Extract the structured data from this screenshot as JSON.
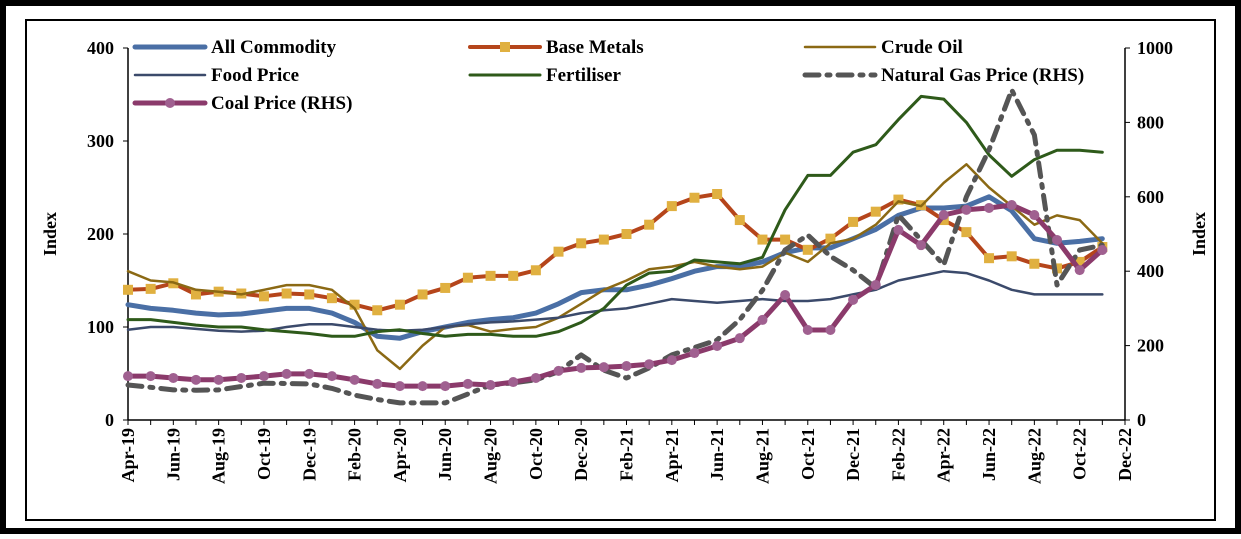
{
  "chart_data": {
    "type": "line",
    "categories": [
      "Apr-19",
      null,
      "Jun-19",
      null,
      "Aug-19",
      null,
      "Oct-19",
      null,
      "Dec-19",
      null,
      "Feb-20",
      null,
      "Apr-20",
      null,
      "Jun-20",
      null,
      "Aug-20",
      null,
      "Oct-20",
      null,
      "Dec-20",
      null,
      "Feb-21",
      null,
      "Apr-21",
      null,
      "Jun-21",
      null,
      "Aug-21",
      null,
      "Oct-21",
      null,
      "Dec-21",
      null,
      "Feb-22",
      null,
      "Apr-22",
      null,
      "Jun-22",
      null,
      "Aug-22",
      null,
      "Oct-22",
      null,
      "Dec-22"
    ],
    "ylabel": "Index",
    "y2label": "Index",
    "ylim": [
      0,
      400
    ],
    "yticks": [
      0,
      100,
      200,
      300,
      400
    ],
    "y2lim": [
      0,
      1000
    ],
    "y2ticks": [
      0,
      200,
      400,
      600,
      800,
      1000
    ],
    "series": [
      {
        "name": "All Commodity",
        "color": "#4a6fa5",
        "width": 5,
        "values": [
          124,
          120,
          118,
          115,
          113,
          114,
          117,
          120,
          120,
          115,
          105,
          90,
          88,
          95,
          100,
          105,
          108,
          110,
          115,
          125,
          137,
          140,
          140,
          145,
          152,
          160,
          165,
          165,
          170,
          180,
          185,
          185,
          195,
          205,
          220,
          228,
          228,
          230,
          240,
          225,
          195,
          190,
          192,
          195,
          null
        ]
      },
      {
        "name": "Base Metals",
        "color": "#b5451b",
        "width": 4,
        "marker": "square",
        "marker_color": "#e0b040",
        "values": [
          140,
          141,
          147,
          135,
          138,
          136,
          133,
          136,
          135,
          131,
          124,
          118,
          124,
          135,
          142,
          153,
          155,
          155,
          161,
          181,
          190,
          194,
          200,
          210,
          230,
          239,
          243,
          215,
          194,
          194,
          183,
          195,
          213,
          224,
          237,
          231,
          215,
          202,
          174,
          176,
          168,
          163,
          170,
          186,
          null
        ]
      },
      {
        "name": "Crude Oil",
        "color": "#8b6914",
        "width": 2.5,
        "values": [
          160,
          150,
          148,
          140,
          138,
          135,
          140,
          145,
          145,
          140,
          120,
          75,
          55,
          80,
          100,
          102,
          95,
          98,
          100,
          110,
          125,
          140,
          150,
          162,
          165,
          170,
          165,
          162,
          165,
          180,
          170,
          190,
          195,
          210,
          235,
          230,
          255,
          275,
          250,
          230,
          210,
          220,
          215,
          190,
          null
        ]
      },
      {
        "name": "Food Price",
        "color": "#3b4a6b",
        "width": 2.5,
        "values": [
          97,
          100,
          100,
          98,
          96,
          95,
          96,
          100,
          103,
          103,
          100,
          97,
          96,
          97,
          100,
          103,
          105,
          106,
          108,
          110,
          115,
          118,
          120,
          125,
          130,
          128,
          126,
          128,
          130,
          128,
          128,
          130,
          135,
          140,
          150,
          155,
          160,
          158,
          150,
          140,
          135,
          135,
          135,
          135,
          null
        ]
      },
      {
        "name": "Fertiliser",
        "color": "#2e5a1a",
        "width": 3,
        "values": [
          108,
          108,
          105,
          102,
          100,
          100,
          97,
          95,
          93,
          90,
          90,
          95,
          97,
          93,
          90,
          92,
          92,
          90,
          90,
          95,
          105,
          120,
          145,
          158,
          160,
          172,
          170,
          168,
          175,
          226,
          263,
          263,
          288,
          296,
          323,
          348,
          345,
          320,
          285,
          262,
          280,
          290,
          290,
          288,
          null
        ]
      },
      {
        "name": "Natural Gas Price (RHS)",
        "color": "#555555",
        "width": 5,
        "dash": "14 8 3 8",
        "axis": "y2",
        "values": [
          94,
          88,
          81,
          80,
          81,
          90,
          99,
          98,
          97,
          85,
          67,
          55,
          46,
          46,
          46,
          70,
          94,
          100,
          108,
          130,
          175,
          134,
          113,
          140,
          175,
          195,
          215,
          270,
          349,
          457,
          497,
          440,
          403,
          355,
          551,
          484,
          417,
          600,
          726,
          887,
          766,
          363,
          457,
          470,
          null
        ]
      },
      {
        "name": "Coal Price (RHS)",
        "color": "#8b3a6b",
        "width": 5,
        "marker": "circle",
        "marker_color": "#a06090",
        "axis": "y2",
        "values": [
          118,
          118,
          113,
          108,
          108,
          113,
          118,
          124,
          124,
          118,
          108,
          97,
          91,
          91,
          91,
          97,
          94,
          102,
          113,
          132,
          140,
          142,
          145,
          150,
          161,
          180,
          199,
          220,
          269,
          336,
          242,
          242,
          323,
          363,
          511,
          470,
          551,
          565,
          570,
          578,
          551,
          484,
          403,
          457,
          null
        ]
      }
    ]
  }
}
